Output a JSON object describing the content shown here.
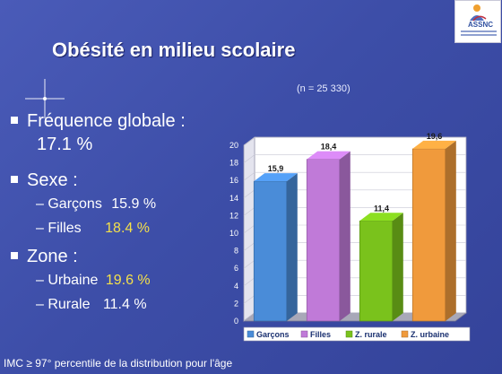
{
  "header": {
    "title": "Obésité en milieu scolaire",
    "sample_size": "(n = 25 330)",
    "logo_text": "ASSNC"
  },
  "bullets": {
    "frequence_label": "Fréquence globale :",
    "frequence_value": "17.1 %",
    "sexe_label": "Sexe :",
    "garcons_label": "– Garçons",
    "garcons_value": "15.9 %",
    "filles_label": "– Filles",
    "filles_value": "18.4 %",
    "zone_label": "Zone :",
    "urbaine_label": "– Urbaine",
    "urbaine_value": "19.6 %",
    "rurale_label": "– Rurale",
    "rurale_value": "11.4 %"
  },
  "footnote": "IMC ≥ 97° percentile de la distribution pour l'âge",
  "chart_data": {
    "type": "bar",
    "categories": [
      "Garçons",
      "Filles",
      "Z. rurale",
      "Z. urbaine"
    ],
    "values": [
      15.9,
      18.4,
      11.4,
      19.6
    ],
    "value_labels": [
      "15,9",
      "18,4",
      "11,4",
      "19,6"
    ],
    "colors": [
      "#4a8cd8",
      "#c07ad8",
      "#7ac21c",
      "#f09a3c"
    ],
    "ylim": [
      0,
      20
    ],
    "yticks": [
      "0",
      "2",
      "4",
      "6",
      "8",
      "10",
      "12",
      "14",
      "16",
      "18",
      "20"
    ],
    "legend_position": "bottom",
    "grid": true,
    "three_d": true
  }
}
